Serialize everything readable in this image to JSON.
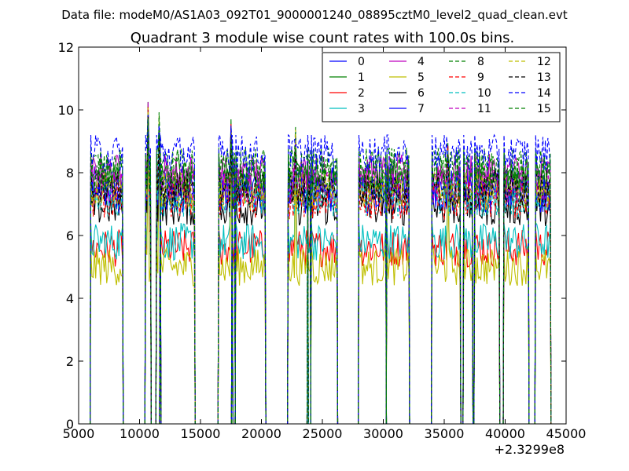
{
  "header": {
    "data_file": "Data file: modeM0/AS1A03_092T01_9000001240_08895cztM0_level2_quad_clean.evt"
  },
  "chart_data": {
    "type": "line",
    "title": "Quadrant 3 module wise count rates with 100.0s bins.",
    "xlabel": "",
    "ylabel": "",
    "xlim": [
      5000,
      45000
    ],
    "ylim": [
      0,
      12
    ],
    "x_offset_label": "+2.3299e8",
    "x_ticks": [
      "5000",
      "10000",
      "15000",
      "20000",
      "25000",
      "30000",
      "35000",
      "40000",
      "45000"
    ],
    "y_ticks": [
      "0",
      "2",
      "4",
      "6",
      "8",
      "10",
      "12"
    ],
    "grid": false,
    "legend_position": "top-right",
    "legend_columns": 4,
    "observation_segments": [
      [
        6000,
        8600
      ],
      [
        10500,
        10900
      ],
      [
        11400,
        11700
      ],
      [
        11700,
        14500
      ],
      [
        16500,
        17600
      ],
      [
        17600,
        17800
      ],
      [
        17900,
        20300
      ],
      [
        22200,
        23800
      ],
      [
        23800,
        24000
      ],
      [
        24100,
        26200
      ],
      [
        28000,
        30200
      ],
      [
        30300,
        32100
      ],
      [
        34000,
        36300
      ],
      [
        36600,
        37300
      ],
      [
        37500,
        39500
      ],
      [
        39900,
        41900
      ],
      [
        42500,
        43700
      ]
    ],
    "spikes": [
      {
        "x": 10700,
        "y": 10.5
      },
      {
        "x": 11600,
        "y": 10.0
      },
      {
        "x": 17500,
        "y": 9.9
      },
      {
        "x": 22800,
        "y": 9.5
      },
      {
        "x": 35300,
        "y": 9.1
      }
    ],
    "series": [
      {
        "name": "0",
        "color": "#0000ff",
        "dash": false,
        "level": 7.6
      },
      {
        "name": "1",
        "color": "#008000",
        "dash": false,
        "level": 7.7
      },
      {
        "name": "2",
        "color": "#ff0000",
        "dash": false,
        "level": 5.6
      },
      {
        "name": "3",
        "color": "#00bfbf",
        "dash": false,
        "level": 5.8
      },
      {
        "name": "4",
        "color": "#bf00bf",
        "dash": false,
        "level": 8.0
      },
      {
        "name": "5",
        "color": "#bfbf00",
        "dash": false,
        "level": 5.0
      },
      {
        "name": "6",
        "color": "#000000",
        "dash": false,
        "level": 6.9
      },
      {
        "name": "7",
        "color": "#0000ff",
        "dash": false,
        "level": 7.3
      },
      {
        "name": "8",
        "color": "#008000",
        "dash": true,
        "level": 8.2
      },
      {
        "name": "9",
        "color": "#ff0000",
        "dash": true,
        "level": 7.1
      },
      {
        "name": "10",
        "color": "#00bfbf",
        "dash": true,
        "level": 7.2
      },
      {
        "name": "11",
        "color": "#bf00bf",
        "dash": true,
        "level": 7.6
      },
      {
        "name": "12",
        "color": "#bfbf00",
        "dash": true,
        "level": 7.4
      },
      {
        "name": "13",
        "color": "#000000",
        "dash": true,
        "level": 7.5
      },
      {
        "name": "14",
        "color": "#0000ff",
        "dash": true,
        "level": 8.6
      },
      {
        "name": "15",
        "color": "#008000",
        "dash": true,
        "level": 8.0
      }
    ]
  }
}
